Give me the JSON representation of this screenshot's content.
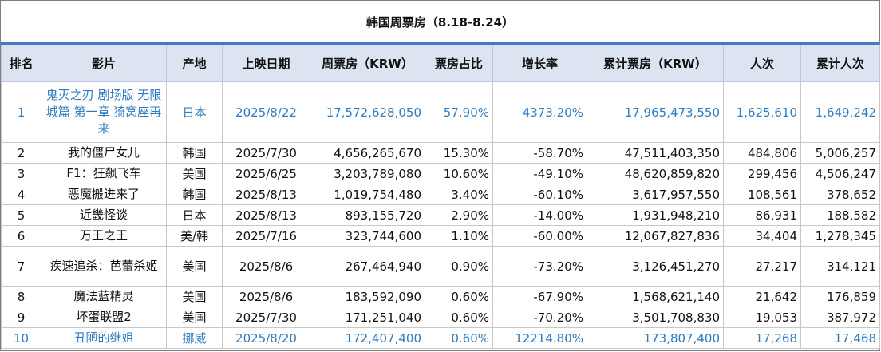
{
  "title": "韩国周票房（8.18-8.24）",
  "columns": [
    "排名",
    "影片",
    "产地",
    "上映日期",
    "周票房（KRW）",
    "票房占比",
    "增长率",
    "累计票房（KRW）",
    "人次",
    "累计人次"
  ],
  "rows": [
    {
      "rank": "1",
      "film": "鬼灭之刃 剧场版 无限城篇 第一章 猗窝座再来",
      "origin": "日本",
      "date": "2025/8/22",
      "weekly": "17,572,628,050",
      "share": "57.90%",
      "growth": "4373.20%",
      "total": "17,965,473,550",
      "admissions": "1,625,610",
      "total_admissions": "1,649,242"
    },
    {
      "rank": "2",
      "film": "我的僵尸女儿",
      "origin": "韩国",
      "date": "2025/7/30",
      "weekly": "4,656,265,670",
      "share": "15.30%",
      "growth": "-58.70%",
      "total": "47,511,403,350",
      "admissions": "484,806",
      "total_admissions": "5,006,257"
    },
    {
      "rank": "3",
      "film": "F1：狂飙飞车",
      "origin": "美国",
      "date": "2025/6/25",
      "weekly": "3,203,789,080",
      "share": "10.60%",
      "growth": "-49.10%",
      "total": "48,620,859,820",
      "admissions": "299,456",
      "total_admissions": "4,506,247"
    },
    {
      "rank": "4",
      "film": "恶魔搬进来了",
      "origin": "韩国",
      "date": "2025/8/13",
      "weekly": "1,019,754,480",
      "share": "3.40%",
      "growth": "-60.10%",
      "total": "3,617,957,550",
      "admissions": "108,561",
      "total_admissions": "378,652"
    },
    {
      "rank": "5",
      "film": "近畿怪谈",
      "origin": "日本",
      "date": "2025/8/13",
      "weekly": "893,155,720",
      "share": "2.90%",
      "growth": "-14.00%",
      "total": "1,931,948,210",
      "admissions": "86,931",
      "total_admissions": "188,582"
    },
    {
      "rank": "6",
      "film": "万王之王",
      "origin": "美/韩",
      "date": "2025/7/16",
      "weekly": "323,744,600",
      "share": "1.10%",
      "growth": "-60.00%",
      "total": "12,067,827,836",
      "admissions": "34,404",
      "total_admissions": "1,278,345"
    },
    {
      "rank": "7",
      "film": "疾速追杀：芭蕾杀姬",
      "origin": "美国",
      "date": "2025/8/6",
      "weekly": "267,464,940",
      "share": "0.90%",
      "growth": "-73.20%",
      "total": "3,126,451,270",
      "admissions": "27,217",
      "total_admissions": "314,121"
    },
    {
      "rank": "8",
      "film": "魔法蓝精灵",
      "origin": "美国",
      "date": "2025/8/6",
      "weekly": "183,592,090",
      "share": "0.60%",
      "growth": "-67.90%",
      "total": "1,568,621,140",
      "admissions": "21,642",
      "total_admissions": "176,859"
    },
    {
      "rank": "9",
      "film": "坏蛋联盟2",
      "origin": "美国",
      "date": "2025/7/30",
      "weekly": "171,251,040",
      "share": "0.60%",
      "growth": "-70.20%",
      "total": "3,501,708,830",
      "admissions": "19,053",
      "total_admissions": "387,972"
    },
    {
      "rank": "10",
      "film": "丑陋的继姐",
      "origin": "挪威",
      "date": "2025/8/20",
      "weekly": "172,407,400",
      "share": "0.60%",
      "growth": "12214.80%",
      "total": "173,807,400",
      "admissions": "17,268",
      "total_admissions": "17,468"
    }
  ],
  "highlight_color": "#2e7bbf",
  "header_bg": "#dce4f2"
}
